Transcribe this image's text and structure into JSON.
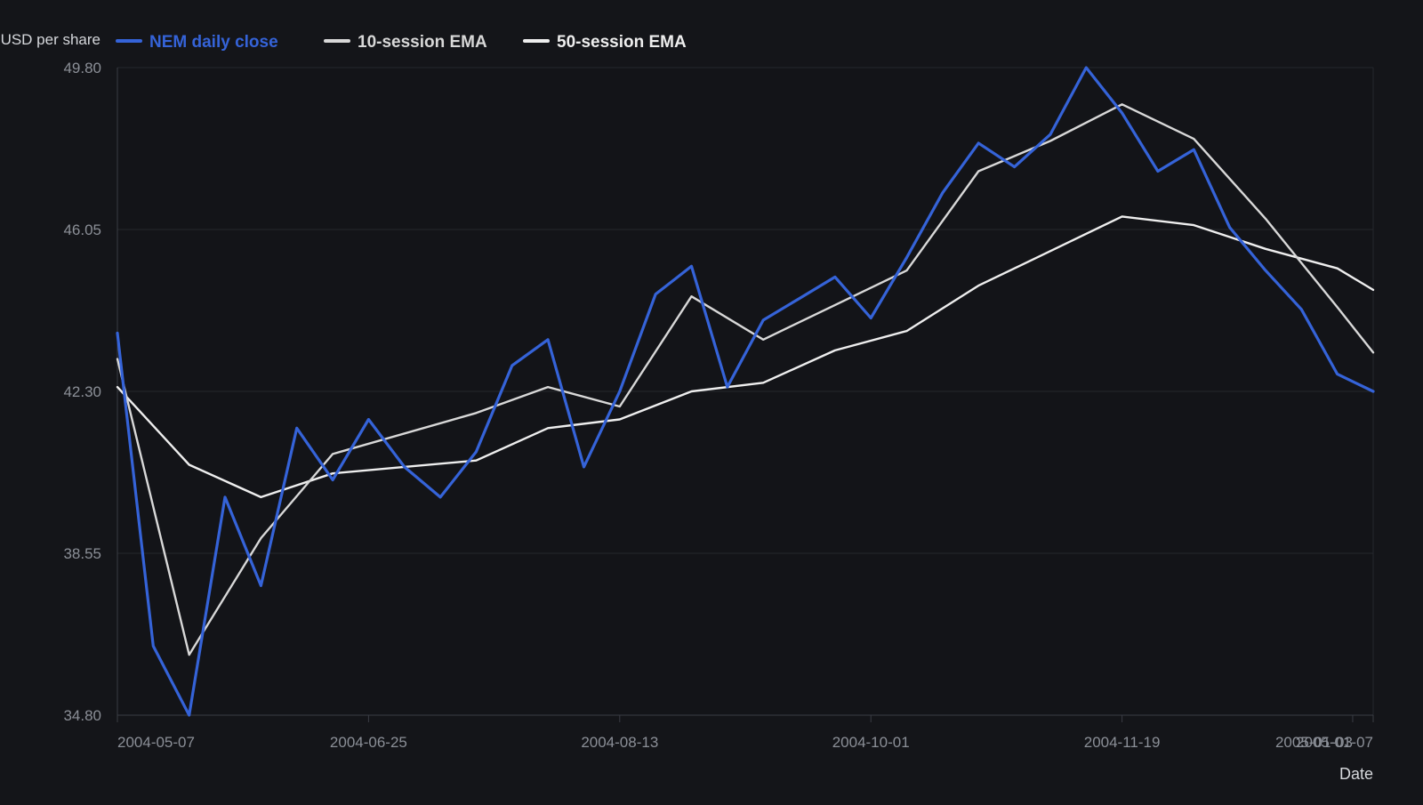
{
  "colors": {
    "background": "#141519",
    "plot_background": "#131418",
    "gridline": "#25272d",
    "axis_line": "#3a3d44",
    "tick_text": "#8b8f97",
    "label_text": "#d6d8dc"
  },
  "chart_data": {
    "type": "line",
    "ylabel": "USD per share",
    "xlabel": "Date",
    "ylim": [
      34.8,
      49.8
    ],
    "yticks": [
      "49.80",
      "46.05",
      "42.30",
      "38.55",
      "34.80"
    ],
    "xlim": [
      "2004-05-07",
      "2005-01-07"
    ],
    "xticks": [
      "2004-05-07",
      "2004-06-25",
      "2004-08-13",
      "2004-10-01",
      "2004-11-19",
      "2005-01-03",
      "2005-01-07"
    ],
    "grid": true,
    "legend_position": "top-left",
    "x": [
      "2004-05-07",
      "2004-05-14",
      "2004-05-21",
      "2004-05-28",
      "2004-06-04",
      "2004-06-11",
      "2004-06-18",
      "2004-06-25",
      "2004-07-02",
      "2004-07-09",
      "2004-07-16",
      "2004-07-23",
      "2004-07-30",
      "2004-08-06",
      "2004-08-13",
      "2004-08-20",
      "2004-08-27",
      "2004-09-03",
      "2004-09-10",
      "2004-09-17",
      "2004-09-24",
      "2004-10-01",
      "2004-10-08",
      "2004-10-15",
      "2004-10-22",
      "2004-10-29",
      "2004-11-05",
      "2004-11-12",
      "2004-11-19",
      "2004-11-26",
      "2004-12-03",
      "2004-12-10",
      "2004-12-17",
      "2004-12-24",
      "2004-12-31",
      "2005-01-07"
    ],
    "series": [
      {
        "name": "NEM daily close",
        "color": "#3563d8",
        "width": 3.2,
        "values": [
          43.65,
          36.4,
          34.8,
          39.85,
          37.8,
          41.45,
          40.25,
          41.65,
          40.55,
          39.85,
          40.9,
          42.9,
          43.5,
          40.55,
          42.3,
          44.55,
          45.2,
          42.4,
          43.95,
          44.45,
          44.95,
          44.0,
          45.4,
          46.9,
          48.05,
          47.5,
          48.25,
          49.8,
          48.75,
          47.4,
          47.9,
          46.1,
          45.1,
          44.2,
          42.7,
          42.3
        ]
      },
      {
        "name": "10-session EMA",
        "color": "#d8d8d8",
        "width": 2.4,
        "values": [
          43.05,
          null,
          36.2,
          null,
          38.9,
          null,
          40.85,
          null,
          null,
          null,
          41.8,
          null,
          42.4,
          null,
          41.95,
          null,
          44.5,
          null,
          43.5,
          null,
          44.3,
          null,
          45.1,
          null,
          47.4,
          null,
          48.1,
          null,
          48.95,
          null,
          48.15,
          null,
          46.3,
          null,
          44.25,
          43.2
        ]
      },
      {
        "name": "50-session EMA",
        "color": "#eeeeee",
        "width": 2.4,
        "values": [
          42.4,
          null,
          40.6,
          null,
          39.85,
          null,
          40.4,
          null,
          null,
          null,
          40.7,
          null,
          41.45,
          null,
          41.65,
          null,
          42.3,
          null,
          42.5,
          null,
          43.25,
          null,
          43.7,
          null,
          44.75,
          null,
          45.55,
          null,
          46.35,
          null,
          46.15,
          null,
          45.6,
          null,
          45.15,
          44.65
        ]
      }
    ]
  }
}
